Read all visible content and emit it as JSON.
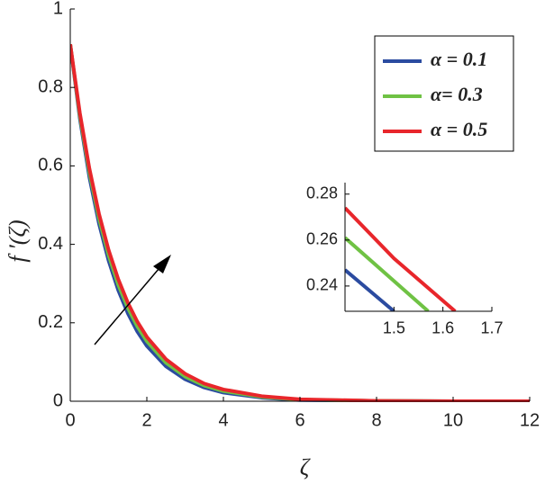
{
  "chart_data": [
    {
      "type": "line",
      "xlabel": "ζ",
      "ylabel": "f ′(ζ)",
      "x": [
        0,
        0.25,
        0.5,
        0.75,
        1,
        1.25,
        1.5,
        1.75,
        2,
        2.5,
        3,
        3.5,
        4,
        5,
        6,
        8,
        10,
        12
      ],
      "series": [
        {
          "name": "α = 0.1",
          "color": "#2b4ba0",
          "values": [
            0.91,
            0.721,
            0.571,
            0.453,
            0.359,
            0.284,
            0.225,
            0.178,
            0.141,
            0.089,
            0.056,
            0.035,
            0.022,
            0.009,
            0.003,
            0.001,
            0,
            0
          ]
        },
        {
          "name": "α= 0.3",
          "color": "#6fc244",
          "values": [
            0.91,
            0.728,
            0.583,
            0.466,
            0.373,
            0.298,
            0.239,
            0.191,
            0.153,
            0.098,
            0.063,
            0.04,
            0.026,
            0.011,
            0.004,
            0.001,
            0,
            0
          ]
        },
        {
          "name": "α = 0.5",
          "color": "#e8262b",
          "values": [
            0.91,
            0.735,
            0.593,
            0.478,
            0.386,
            0.312,
            0.252,
            0.203,
            0.164,
            0.107,
            0.07,
            0.045,
            0.03,
            0.013,
            0.005,
            0.001,
            0,
            0
          ]
        }
      ],
      "xlim": [
        0,
        12
      ],
      "xticks": [
        0,
        2,
        4,
        6,
        8,
        10,
        12
      ],
      "ylim": [
        0,
        1
      ],
      "yticks": [
        0,
        0.2,
        0.4,
        0.6,
        0.8,
        1
      ],
      "legend": "upper right"
    },
    {
      "type": "line",
      "series": [
        {
          "color": "#2b4ba0",
          "x": [
            1.4,
            1.5
          ],
          "values": [
            0.247,
            0.229
          ]
        },
        {
          "color": "#6fc244",
          "x": [
            1.4,
            1.57
          ],
          "values": [
            0.261,
            0.229
          ]
        },
        {
          "color": "#e8262b",
          "x": [
            1.4,
            1.5,
            1.625
          ],
          "values": [
            0.274,
            0.252,
            0.229
          ]
        }
      ],
      "xlim": [
        1.4,
        1.7
      ],
      "xticks": [
        1.5,
        1.6,
        1.7
      ],
      "ylim": [
        0.229,
        0.285
      ],
      "yticks": [
        0.24,
        0.26,
        0.28
      ]
    }
  ]
}
